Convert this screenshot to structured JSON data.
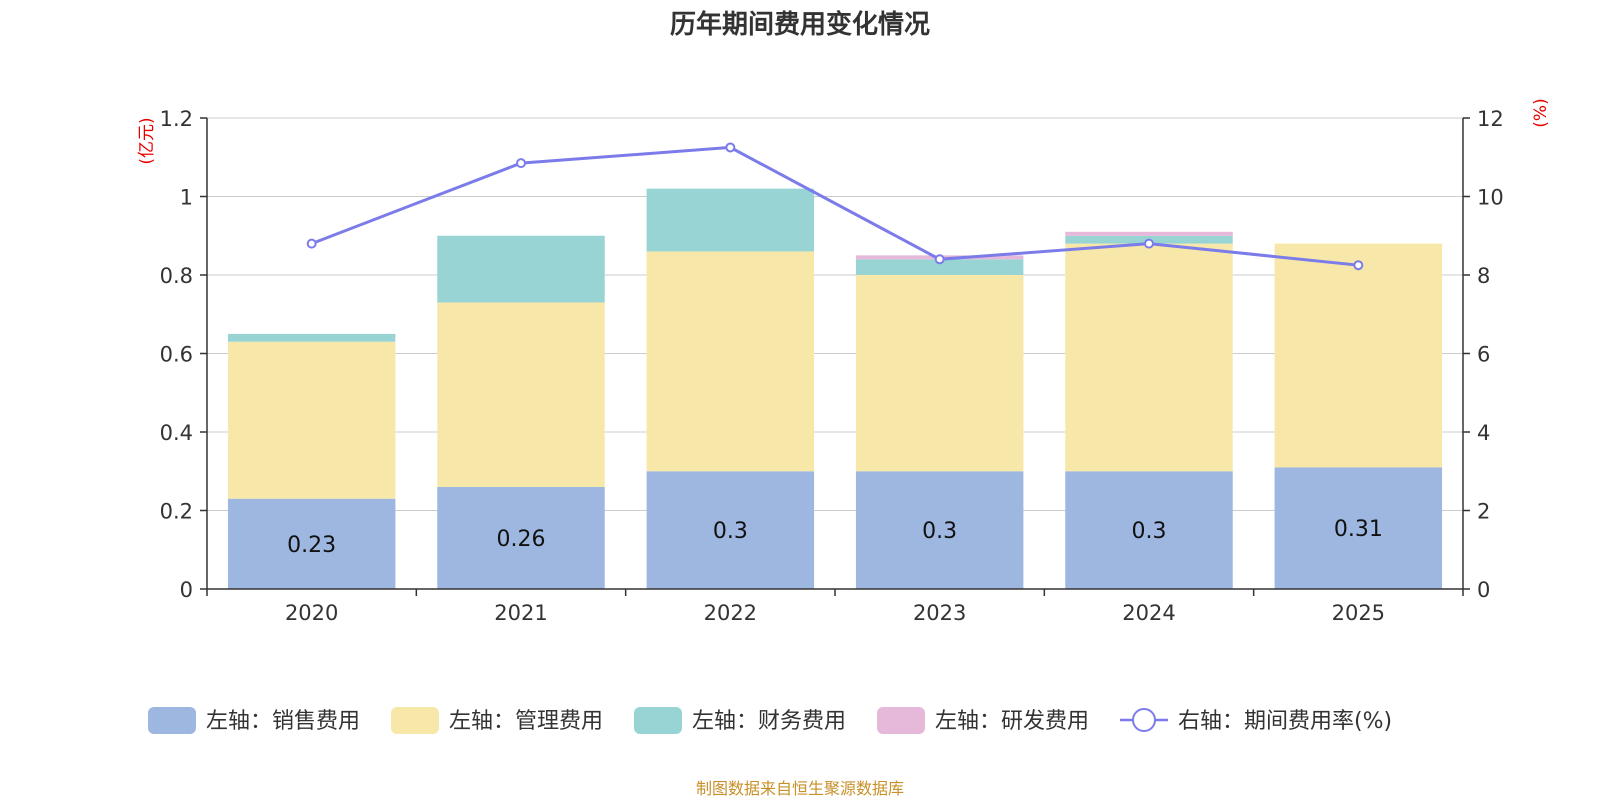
{
  "chart_data": {
    "type": "bar",
    "stacked": true,
    "title": "历年期间费用变化情况",
    "categories": [
      "2020",
      "2021",
      "2022",
      "2023",
      "2024",
      "2025"
    ],
    "left_axis": {
      "unit": "(亿元)",
      "ylim": [
        0,
        1.2
      ],
      "ticks": [
        0,
        0.2,
        0.4,
        0.6,
        0.8,
        1,
        1.2
      ],
      "tick_labels": [
        "0",
        "0.2",
        "0.4",
        "0.6",
        "0.8",
        "1",
        "1.2"
      ]
    },
    "right_axis": {
      "unit": "(%)",
      "ylim": [
        0,
        12
      ],
      "ticks": [
        0,
        2,
        4,
        6,
        8,
        10,
        12
      ],
      "tick_labels": [
        "0",
        "2",
        "4",
        "6",
        "8",
        "10",
        "12"
      ]
    },
    "series": [
      {
        "name": "左轴：销售费用",
        "axis": "left",
        "kind": "bar",
        "color": "#9db7e0",
        "values": [
          0.23,
          0.26,
          0.3,
          0.3,
          0.3,
          0.31
        ],
        "data_labels": [
          "0.23",
          "0.26",
          "0.3",
          "0.3",
          "0.3",
          "0.31"
        ]
      },
      {
        "name": "左轴：管理费用",
        "axis": "left",
        "kind": "bar",
        "color": "#f7e7a8",
        "values": [
          0.4,
          0.47,
          0.56,
          0.5,
          0.58,
          0.57
        ]
      },
      {
        "name": "左轴：财务费用",
        "axis": "left",
        "kind": "bar",
        "color": "#99d4d5",
        "values": [
          0.02,
          0.17,
          0.16,
          0.04,
          0.02,
          0.0
        ]
      },
      {
        "name": "左轴：研发费用",
        "axis": "left",
        "kind": "bar",
        "color": "#e6b8d9",
        "values": [
          0.0,
          0.0,
          0.0,
          0.01,
          0.01,
          0.0
        ]
      },
      {
        "name": "右轴：期间费用率(%)",
        "axis": "right",
        "kind": "line",
        "color": "#7b7bea",
        "values": [
          8.8,
          10.85,
          11.25,
          8.4,
          8.8,
          8.25
        ]
      }
    ],
    "legend_position": "bottom",
    "grid": true
  },
  "footer": {
    "source": "制图数据来自恒生聚源数据库"
  }
}
